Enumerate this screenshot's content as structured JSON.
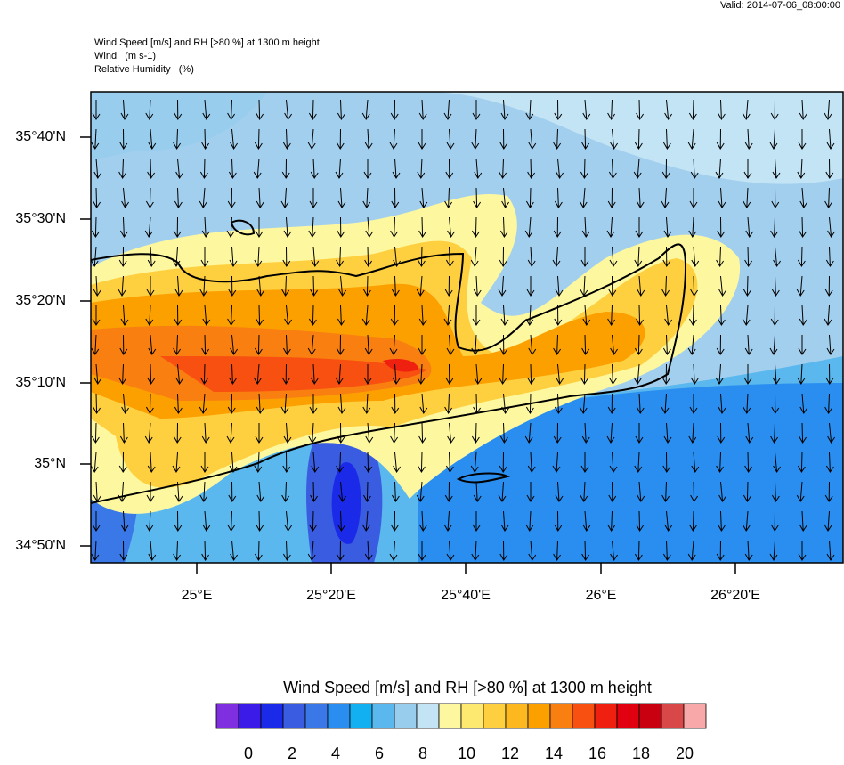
{
  "header": {
    "valid": "Valid: 2014-07-06_08:00:00",
    "title": "Wind Speed [m/s] and RH [>80 %] at 1300 m height",
    "wind": "Wind   (m s-1)",
    "rh": "Relative Humidity   (%)"
  },
  "map": {
    "lat_labels": [
      "35°40'N",
      "35°30'N",
      "35°20'N",
      "35°10'N",
      "35°N",
      "34°50'N"
    ],
    "lon_labels": [
      "25°E",
      "25°20'E",
      "25°40'E",
      "26°E",
      "26°20'E"
    ]
  },
  "colorbar": {
    "title": "Wind Speed [m/s] and RH [>80 %] at 1300 m height",
    "colors": [
      "#7f2fe0",
      "#3a1be8",
      "#1a2ae8",
      "#3a5ce0",
      "#3a78e8",
      "#2a8ef0",
      "#12b0f0",
      "#5ab8ee",
      "#98cdee",
      "#c2e4f5",
      "#fdf8a0",
      "#fde870",
      "#fed040",
      "#fdb820",
      "#fca000",
      "#f98010",
      "#f75010",
      "#f02010",
      "#e00010",
      "#c80010",
      "#d84848",
      "#f8a8a8"
    ],
    "labels": [
      "0",
      "2",
      "4",
      "6",
      "8",
      "10",
      "12",
      "14",
      "16",
      "18",
      "20"
    ]
  }
}
